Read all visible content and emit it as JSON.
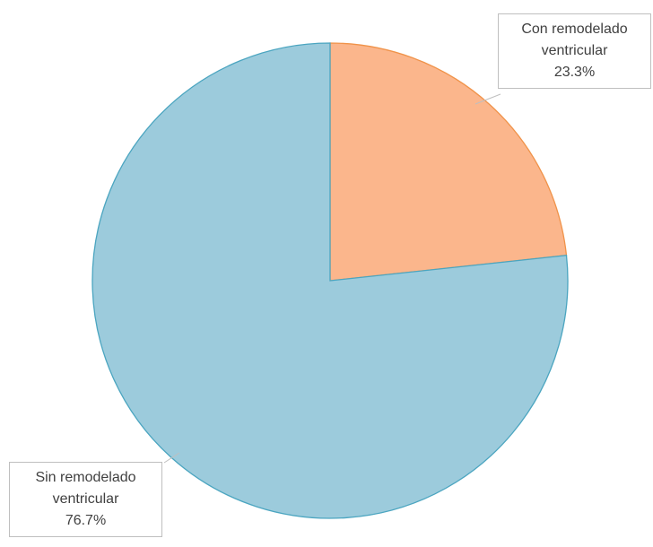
{
  "chart_data": {
    "type": "pie",
    "categories": [
      "Con remodelado ventricular",
      "Sin remodelado ventricular"
    ],
    "values": [
      23.3,
      76.7
    ],
    "value_labels": [
      "23.3%",
      "76.7%"
    ],
    "colors": [
      "#fbb68c",
      "#9ccbdc"
    ],
    "edge_colors": [
      "#f0934a",
      "#4ba5c0"
    ]
  }
}
